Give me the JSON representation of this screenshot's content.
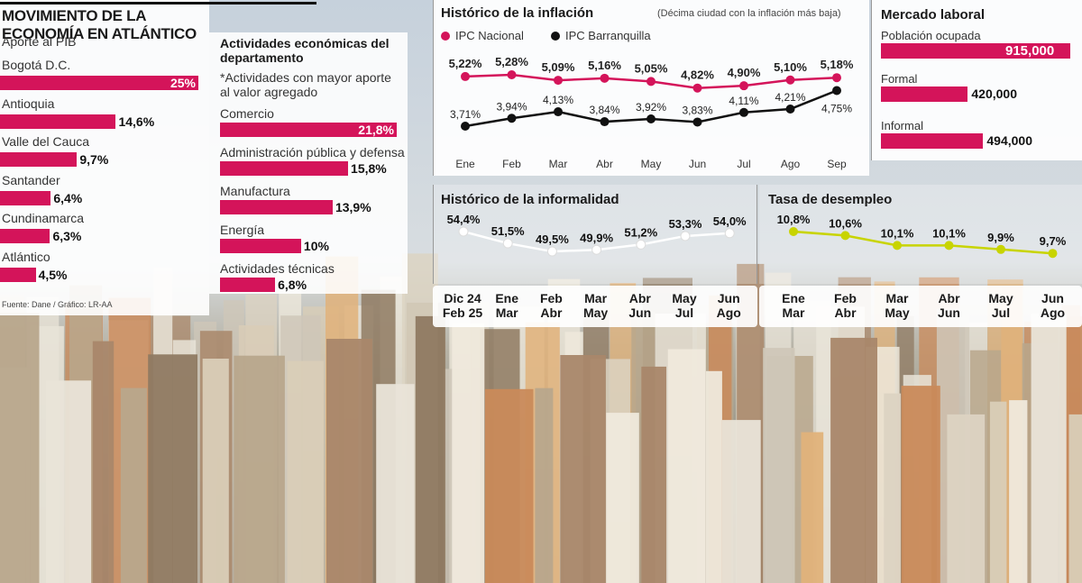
{
  "header": {
    "title": "MOVIMIENTO DE LA ECONOMÍA EN ATLÁNTICO"
  },
  "source": "Fuente: Dane / Gráfico: LR-AA",
  "colors": {
    "accent": "#d4145a",
    "black_series": "#111111",
    "informalidad": "#ffffff",
    "desempleo": "#c8d400"
  },
  "chart_data": [
    {
      "type": "bar",
      "title": "Aporte al PIB",
      "categories": [
        "Bogotá D.C.",
        "Antioquia",
        "Valle del Cauca",
        "Santander",
        "Cundinamarca",
        "Atlántico"
      ],
      "values": [
        25,
        14.6,
        9.7,
        6.4,
        6.3,
        4.5
      ],
      "value_labels": [
        "25%",
        "14,6%",
        "9,7%",
        "6,4%",
        "6,3%",
        "4,5%"
      ],
      "orientation": "horizontal"
    },
    {
      "type": "bar",
      "title": "Actividades económicas del departamento",
      "subtitle": "*Actividades con mayor aporte al valor agregado",
      "categories": [
        "Comercio",
        "Administración pública y defensa",
        "Manufactura",
        "Energía",
        "Actividades técnicas"
      ],
      "values": [
        21.8,
        15.8,
        13.9,
        10,
        6.8
      ],
      "value_labels": [
        "21,8%",
        "15,8%",
        "13,9%",
        "10%",
        "6,8%"
      ],
      "orientation": "horizontal"
    },
    {
      "type": "line",
      "title": "Histórico de la inflación",
      "subtitle": "(Décima ciudad con la inflación más baja)",
      "x": [
        "Ene",
        "Feb",
        "Mar",
        "Abr",
        "May",
        "Jun",
        "Jul",
        "Ago",
        "Sep"
      ],
      "series": [
        {
          "name": "IPC Nacional",
          "values": [
            5.22,
            5.28,
            5.09,
            5.16,
            5.05,
            4.82,
            4.9,
            5.1,
            5.18
          ],
          "labels": [
            "5,22%",
            "5,28%",
            "5,09%",
            "5,16%",
            "5,05%",
            "4,82%",
            "4,90%",
            "5,10%",
            "5,18%"
          ]
        },
        {
          "name": "IPC Barranquilla",
          "values": [
            3.71,
            3.94,
            4.13,
            3.84,
            3.92,
            3.83,
            4.11,
            4.21,
            4.75
          ],
          "labels": [
            "3,71%",
            "3,94%",
            "4,13%",
            "3,84%",
            "3,92%",
            "3,83%",
            "4,11%",
            "4,21%",
            "4,75%"
          ]
        }
      ]
    },
    {
      "type": "bar",
      "title": "Mercado laboral",
      "categories": [
        "Población ocupada",
        "Formal",
        "Informal"
      ],
      "values": [
        915000,
        420000,
        494000
      ],
      "value_labels": [
        "915,000",
        "420,000",
        "494,000"
      ],
      "orientation": "horizontal"
    },
    {
      "type": "line",
      "title": "Histórico de la informalidad",
      "x": [
        "Dic 24\nFeb 25",
        "Ene\nMar",
        "Feb\nAbr",
        "Mar\nMay",
        "Abr\nJun",
        "May\nJul",
        "Jun\nAgo"
      ],
      "series": [
        {
          "values": [
            54.4,
            51.5,
            49.5,
            49.9,
            51.2,
            53.3,
            54.0
          ],
          "labels": [
            "54,4%",
            "51,5%",
            "49,5%",
            "49,9%",
            "51,2%",
            "53,3%",
            "54,0%"
          ]
        }
      ]
    },
    {
      "type": "line",
      "title": "Tasa de desempleo",
      "x": [
        "Ene\nMar",
        "Feb\nAbr",
        "Mar\nMay",
        "Abr\nJun",
        "May\nJul",
        "Jun\nAgo"
      ],
      "series": [
        {
          "values": [
            10.8,
            10.6,
            10.1,
            10.1,
            9.9,
            9.7
          ],
          "labels": [
            "10,8%",
            "10,6%",
            "10,1%",
            "10,1%",
            "9,9%",
            "9,7%"
          ]
        }
      ]
    }
  ]
}
